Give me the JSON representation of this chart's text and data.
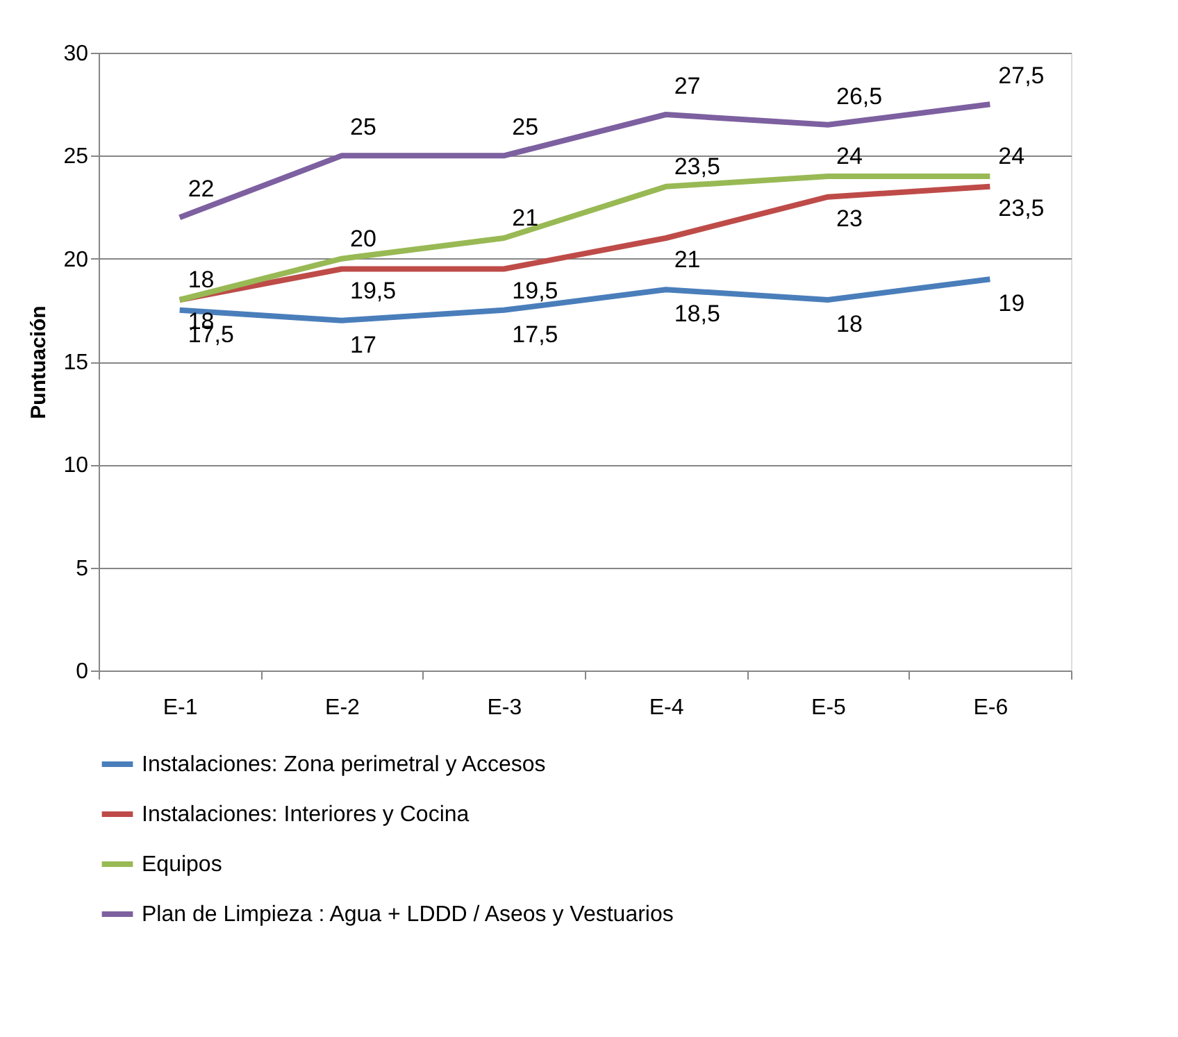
{
  "chart_data": {
    "type": "line",
    "ylabel": "Puntuación",
    "categories": [
      "E-1",
      "E-2",
      "E-3",
      "E-4",
      "E-5",
      "E-6"
    ],
    "series": [
      {
        "name": "Instalaciones:  Zona perimetral y Accesos",
        "color": "#4a7ebb",
        "values": [
          17.5,
          17,
          17.5,
          18.5,
          18,
          19
        ],
        "value_labels": [
          "17,5",
          "17",
          "17,5",
          "18,5",
          "18",
          "19"
        ]
      },
      {
        "name": "Instalaciones: Interiores y Cocina",
        "color": "#be4b48",
        "values": [
          18,
          19.5,
          19.5,
          21,
          23,
          23.5
        ],
        "value_labels": [
          "18",
          "19,5",
          "19,5",
          "21",
          "23",
          "23,5"
        ]
      },
      {
        "name": "Equipos",
        "color": "#98b954",
        "values": [
          18,
          20,
          21,
          23.5,
          24,
          24
        ],
        "value_labels": [
          "18",
          "20",
          "21",
          "23,5",
          "24",
          "24"
        ]
      },
      {
        "name": "Plan de Limpieza : Agua + LDDD / Aseos y Vestuarios",
        "color": "#7d60a0",
        "values": [
          22,
          25,
          25,
          27,
          26.5,
          27.5
        ],
        "value_labels": [
          "22",
          "25",
          "25",
          "27",
          "26,5",
          "27,5"
        ]
      }
    ],
    "ylim": [
      0,
      30
    ],
    "yticks": [
      0,
      5,
      10,
      15,
      20,
      25,
      30
    ],
    "grid": "y",
    "legend": "bottom",
    "marker": "none",
    "line_style": "solid"
  }
}
